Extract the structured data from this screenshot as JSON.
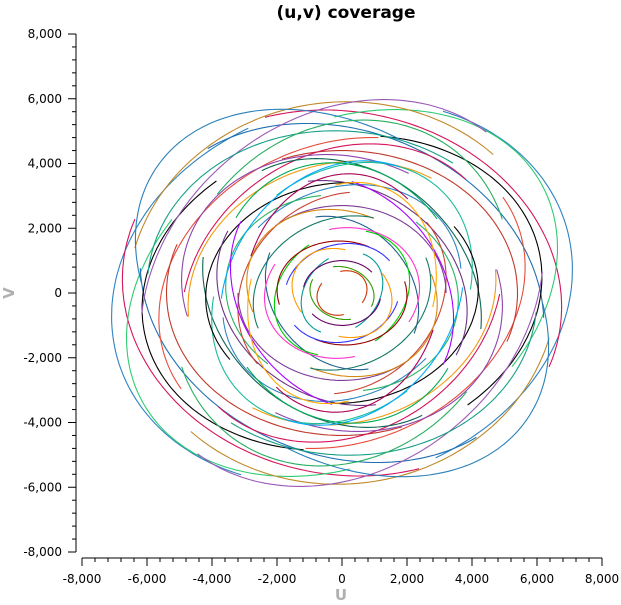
{
  "chart_data": {
    "type": "scatter",
    "title": "(u,v) coverage",
    "xlabel": "U",
    "ylabel": "V",
    "xlim": [
      -8000,
      8000
    ],
    "ylim": [
      -8000,
      8000
    ],
    "x_ticks": [
      -8000,
      -6000,
      -4000,
      -2000,
      0,
      2000,
      4000,
      6000,
      8000
    ],
    "y_ticks": [
      -8000,
      -6000,
      -4000,
      -2000,
      0,
      2000,
      4000,
      6000,
      8000
    ],
    "x_tick_labels": [
      "-8,000",
      "-6,000",
      "-4,000",
      "-2,000",
      "0",
      "2,000",
      "4,000",
      "6,000",
      "8,000"
    ],
    "y_tick_labels": [
      "-8,000",
      "-6,000",
      "-4,000",
      "-2,000",
      "0",
      "2,000",
      "4,000",
      "6,000",
      "8,000"
    ],
    "grid": false,
    "legend": "none",
    "tracks": [
      {
        "a": 7200,
        "b": 5800,
        "phi": 0.3,
        "start": 100,
        "end": 230,
        "color": "#2d83c2"
      },
      {
        "a": 6800,
        "b": 5600,
        "phi": -0.2,
        "start": 170,
        "end": 300,
        "color": "#d4145a"
      },
      {
        "a": 7000,
        "b": 5200,
        "phi": 0.5,
        "start": -60,
        "end": 70,
        "color": "#2ecc71"
      },
      {
        "a": 6600,
        "b": 5900,
        "phi": 0.1,
        "start": 40,
        "end": 160,
        "color": "#c08a2a"
      },
      {
        "a": 6400,
        "b": 5000,
        "phi": -0.4,
        "start": 200,
        "end": 330,
        "color": "#1f6fb0"
      },
      {
        "a": 6200,
        "b": 4800,
        "phi": 0.2,
        "start": 120,
        "end": 250,
        "color": "#000000"
      },
      {
        "a": 6700,
        "b": 5400,
        "phi": 0.7,
        "start": 10,
        "end": 140,
        "color": "#9b59b6"
      },
      {
        "a": 6000,
        "b": 5000,
        "phi": -0.1,
        "start": 240,
        "end": 360,
        "color": "#16a085"
      },
      {
        "a": 5800,
        "b": 4600,
        "phi": 0.4,
        "start": 60,
        "end": 190,
        "color": "#e74c3c"
      },
      {
        "a": 6900,
        "b": 5000,
        "phi": -0.6,
        "start": 280,
        "end": 400,
        "color": "#2980b9"
      },
      {
        "a": 5600,
        "b": 4900,
        "phi": 0.9,
        "start": 150,
        "end": 270,
        "color": "#27ae60"
      },
      {
        "a": 5400,
        "b": 4400,
        "phi": 0.0,
        "start": -20,
        "end": 110,
        "color": "#c0392b"
      },
      {
        "a": 5200,
        "b": 4300,
        "phi": 0.6,
        "start": 190,
        "end": 320,
        "color": "#d4145a"
      },
      {
        "a": 5000,
        "b": 4200,
        "phi": -0.3,
        "start": 80,
        "end": 210,
        "color": "#8e44ad"
      },
      {
        "a": 4800,
        "b": 4000,
        "phi": 0.3,
        "start": 220,
        "end": 350,
        "color": "#f39c12"
      },
      {
        "a": 4600,
        "b": 3800,
        "phi": -0.7,
        "start": 30,
        "end": 160,
        "color": "#0e6655"
      },
      {
        "a": 4400,
        "b": 3600,
        "phi": 0.8,
        "start": 130,
        "end": 260,
        "color": "#1abc9c"
      },
      {
        "a": 4200,
        "b": 3400,
        "phi": 0.1,
        "start": 260,
        "end": 390,
        "color": "#000000"
      },
      {
        "a": 4000,
        "b": 3300,
        "phi": -0.5,
        "start": 0,
        "end": 130,
        "color": "#6c3483"
      },
      {
        "a": 3800,
        "b": 3200,
        "phi": 0.5,
        "start": 160,
        "end": 290,
        "color": "#2e86c1"
      },
      {
        "a": 3600,
        "b": 3000,
        "phi": -0.2,
        "start": 290,
        "end": 420,
        "color": "#28b463"
      },
      {
        "a": 3400,
        "b": 2900,
        "phi": 0.7,
        "start": 50,
        "end": 180,
        "color": "#cb4335"
      },
      {
        "a": 3200,
        "b": 2700,
        "phi": 0.0,
        "start": 180,
        "end": 310,
        "color": "#7d3c98"
      },
      {
        "a": 3000,
        "b": 2500,
        "phi": -0.4,
        "start": 90,
        "end": 220,
        "color": "#d68910"
      },
      {
        "a": 2800,
        "b": 2300,
        "phi": 0.4,
        "start": 230,
        "end": 360,
        "color": "#117a65"
      },
      {
        "a": 2600,
        "b": 2100,
        "phi": -0.8,
        "start": 20,
        "end": 150,
        "color": "#1f618d"
      },
      {
        "a": 2400,
        "b": 2000,
        "phi": 0.2,
        "start": 140,
        "end": 270,
        "color": "#ff33cc"
      },
      {
        "a": 2200,
        "b": 1800,
        "phi": 0.6,
        "start": 270,
        "end": 400,
        "color": "#00cc00"
      },
      {
        "a": 2000,
        "b": 1600,
        "phi": -0.1,
        "start": 70,
        "end": 200,
        "color": "#990000"
      },
      {
        "a": 1800,
        "b": 1500,
        "phi": 0.3,
        "start": 200,
        "end": 330,
        "color": "#3333ff"
      },
      {
        "a": 1600,
        "b": 1300,
        "phi": -0.5,
        "start": 110,
        "end": 240,
        "color": "#ff9900"
      },
      {
        "a": 1400,
        "b": 1100,
        "phi": 0.8,
        "start": 250,
        "end": 380,
        "color": "#009999"
      },
      {
        "a": 1200,
        "b": 1000,
        "phi": 0.0,
        "start": 40,
        "end": 170,
        "color": "#660066"
      },
      {
        "a": 1000,
        "b": 800,
        "phi": -0.3,
        "start": 170,
        "end": 300,
        "color": "#339900"
      },
      {
        "a": 800,
        "b": 650,
        "phi": 0.5,
        "start": 300,
        "end": 430,
        "color": "#cc3300"
      },
      {
        "a": 4300,
        "b": 3500,
        "phi": 1.0,
        "start": 10,
        "end": 120,
        "color": "#00aaff"
      },
      {
        "a": 3900,
        "b": 3100,
        "phi": -0.9,
        "start": 200,
        "end": 310,
        "color": "#aa00ff"
      },
      {
        "a": 3500,
        "b": 2800,
        "phi": 1.2,
        "start": 100,
        "end": 210,
        "color": "#ffaa00"
      },
      {
        "a": 4100,
        "b": 3700,
        "phi": -1.1,
        "start": 280,
        "end": 390,
        "color": "#00aa55"
      },
      {
        "a": 3700,
        "b": 3000,
        "phi": 1.4,
        "start": 150,
        "end": 260,
        "color": "#aa0055"
      }
    ]
  }
}
